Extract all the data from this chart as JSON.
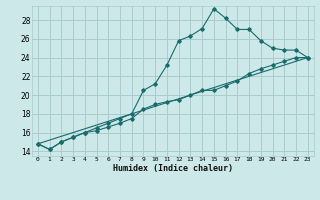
{
  "xlabel": "Humidex (Indice chaleur)",
  "bg_color": "#cce8e8",
  "grid_color": "#aacccc",
  "line_color": "#1a6b6b",
  "xlim": [
    -0.5,
    23.5
  ],
  "ylim": [
    13.5,
    29.5
  ],
  "xticks": [
    0,
    1,
    2,
    3,
    4,
    5,
    6,
    7,
    8,
    9,
    10,
    11,
    12,
    13,
    14,
    15,
    16,
    17,
    18,
    19,
    20,
    21,
    22,
    23
  ],
  "yticks": [
    14,
    16,
    18,
    20,
    22,
    24,
    26,
    28
  ],
  "line1_x": [
    0,
    1,
    2,
    3,
    4,
    5,
    6,
    7,
    8,
    9,
    10,
    11,
    12,
    13,
    14,
    15,
    16,
    17,
    18,
    19,
    20,
    21,
    22,
    23
  ],
  "line1_y": [
    14.8,
    14.2,
    15.0,
    15.5,
    16.0,
    16.5,
    17.0,
    17.5,
    18.0,
    20.5,
    21.2,
    23.2,
    25.8,
    26.3,
    27.1,
    29.2,
    28.2,
    27.0,
    27.0,
    25.8,
    25.0,
    24.8,
    24.8,
    24.0
  ],
  "line2_x": [
    0,
    1,
    2,
    3,
    4,
    5,
    6,
    7,
    8,
    9,
    10,
    11,
    12,
    13,
    14,
    15,
    16,
    17,
    18,
    19,
    20,
    21,
    22,
    23
  ],
  "line2_y": [
    14.8,
    14.2,
    15.0,
    15.5,
    16.0,
    16.2,
    16.6,
    17.0,
    17.5,
    18.5,
    19.0,
    19.3,
    19.5,
    20.0,
    20.5,
    20.5,
    21.0,
    21.5,
    22.3,
    22.8,
    23.2,
    23.6,
    24.0,
    24.0
  ],
  "line3_x": [
    0,
    23
  ],
  "line3_y": [
    14.8,
    24.0
  ]
}
